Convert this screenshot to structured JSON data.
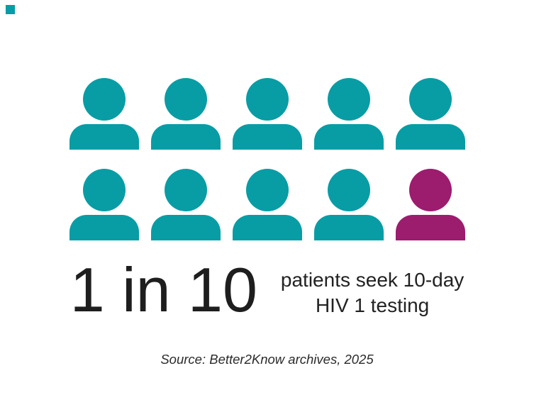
{
  "page": {
    "background": "#ffffff"
  },
  "accent_square": {
    "color": "#089da5"
  },
  "chart_data": {
    "type": "pictogram",
    "title": "",
    "icon": "person",
    "total_icons": 10,
    "highlighted_icons": 1,
    "rows": 2,
    "cols": 5,
    "icon_color": "#089da5",
    "highlight_color": "#9c1c6e",
    "highlight_position": "bottom-right (row 2, icon 5)",
    "ratio_label": "1 in 10",
    "description_line1": "patients seek 10-day",
    "description_line2": "HIV 1 testing",
    "source": "Source: Better2Know archives, 2025"
  },
  "stat": {
    "ratio": "1 in 10",
    "description_line1": "patients seek 10-day",
    "description_line2": "HIV 1 testing"
  },
  "footer": {
    "source": "Source: Better2Know archives, 2025"
  },
  "colors": {
    "teal": "#089da5",
    "magenta": "#9c1c6e",
    "text_dark": "#1e1e1e",
    "source_text": "#2b2b2b"
  }
}
